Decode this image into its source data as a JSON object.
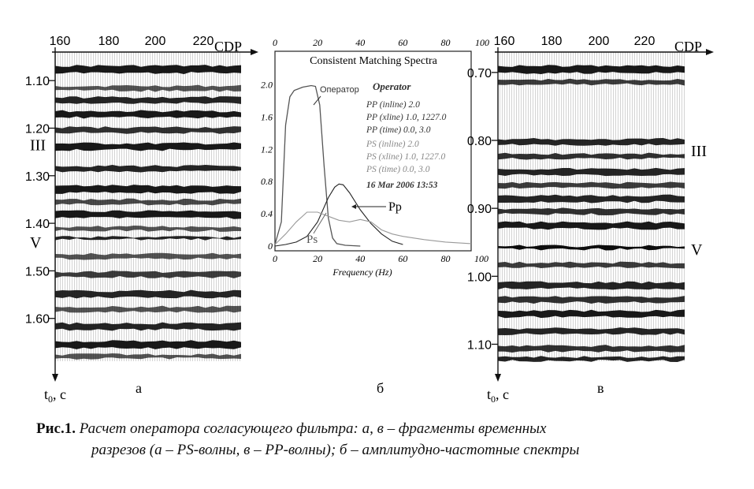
{
  "panel_a": {
    "x_ticks": [
      "160",
      "180",
      "200",
      "220"
    ],
    "x_axis_label": "CDP",
    "y_ticks": [
      "1.10",
      "1.20",
      "1.30",
      "1.40",
      "1.50",
      "1.60"
    ],
    "y_tick_values": [
      1.1,
      1.2,
      1.3,
      1.4,
      1.5,
      1.6
    ],
    "y_range": [
      1.04,
      1.69
    ],
    "horizon_labels": [
      {
        "text": "III",
        "t": 1.235
      },
      {
        "text": "V",
        "t": 1.44
      }
    ],
    "t_label": "t",
    "t_sub": "0",
    "t_unit": ", с",
    "panel_letter": "а"
  },
  "panel_b": {
    "title": "Consistent Matching Spectra",
    "x_ticks_top": [
      "0",
      "20",
      "40",
      "60",
      "80",
      "100"
    ],
    "x_ticks_bottom": [
      "0",
      "20",
      "40",
      "60",
      "80"
    ],
    "y_ticks": [
      "0",
      "0.4",
      "0.8",
      "1.2",
      "1.6",
      "2.0"
    ],
    "y_tick_values": [
      0,
      0.4,
      0.8,
      1.2,
      1.6,
      2.0
    ],
    "xlabel": "Frequency (Hz)",
    "xlim": [
      0,
      92
    ],
    "ylim": [
      0,
      2.2
    ],
    "corner_label": "100",
    "legend": {
      "heading": "Operator",
      "pp_lines": [
        "PP (inline) 2.0",
        "PP (xline) 1.0, 1227.0",
        "PP (time) 0.0, 3.0"
      ],
      "ps_lines": [
        "PS (inline) 2.0",
        "PS (xline) 1.0, 1227.0",
        "PS (time) 0.0, 3.0"
      ],
      "date": "16 Mar 2006   13:53"
    },
    "annotations": {
      "operator": "Оператор",
      "pp": "Pp",
      "ps": "Ps"
    },
    "panel_letter": "б"
  },
  "chart_data": {
    "type": "line",
    "title": "Consistent Matching Spectra",
    "xlabel": "Frequency (Hz)",
    "ylabel": "",
    "xlim": [
      0,
      92
    ],
    "ylim": [
      0,
      2.2
    ],
    "series": [
      {
        "name": "Оператор",
        "color": "#555555",
        "x": [
          0,
          3,
          5,
          7,
          9,
          11,
          13,
          15,
          17,
          19,
          21,
          23,
          25,
          27,
          29,
          33,
          40
        ],
        "y": [
          0.02,
          0.3,
          1.5,
          1.85,
          1.93,
          1.95,
          1.97,
          1.98,
          1.99,
          1.98,
          1.75,
          1.0,
          0.35,
          0.1,
          0.03,
          0.01,
          0.0
        ]
      },
      {
        "name": "Pp",
        "color": "#222222",
        "x": [
          0,
          5,
          10,
          15,
          20,
          25,
          28,
          30,
          32,
          35,
          40,
          45,
          50,
          55,
          60
        ],
        "y": [
          0.0,
          0.02,
          0.05,
          0.12,
          0.3,
          0.6,
          0.73,
          0.77,
          0.76,
          0.66,
          0.45,
          0.28,
          0.15,
          0.06,
          0.02
        ]
      },
      {
        "name": "Ps",
        "color": "#999999",
        "x": [
          0,
          5,
          10,
          15,
          20,
          25,
          30,
          35,
          40,
          45,
          50,
          55,
          60,
          70,
          80,
          92
        ],
        "y": [
          0.02,
          0.15,
          0.3,
          0.42,
          0.42,
          0.37,
          0.32,
          0.3,
          0.33,
          0.3,
          0.2,
          0.15,
          0.12,
          0.08,
          0.05,
          0.03
        ]
      }
    ]
  },
  "panel_v": {
    "x_ticks": [
      "160",
      "180",
      "200",
      "220"
    ],
    "x_axis_label": "CDP",
    "y_ticks": [
      "0.70",
      "0.80",
      "0.90",
      "1.00",
      "1.10"
    ],
    "y_tick_values": [
      0.7,
      0.8,
      0.9,
      1.0,
      1.1
    ],
    "y_range": [
      0.67,
      1.125
    ],
    "horizon_labels": [
      {
        "text": "III",
        "t": 0.815
      },
      {
        "text": "V",
        "t": 0.96
      }
    ],
    "t_label": "t",
    "t_sub": "0",
    "t_unit": ", с",
    "panel_letter": "в"
  },
  "caption": {
    "label": "Рис.1.",
    "line1": "Расчет оператора согласующего фильтра: а, в  –  фрагменты временных",
    "line2": "разрезов (а  –  PS-волны, в  –  PP-волны); б  –  амплитудно-частотные спектры"
  }
}
